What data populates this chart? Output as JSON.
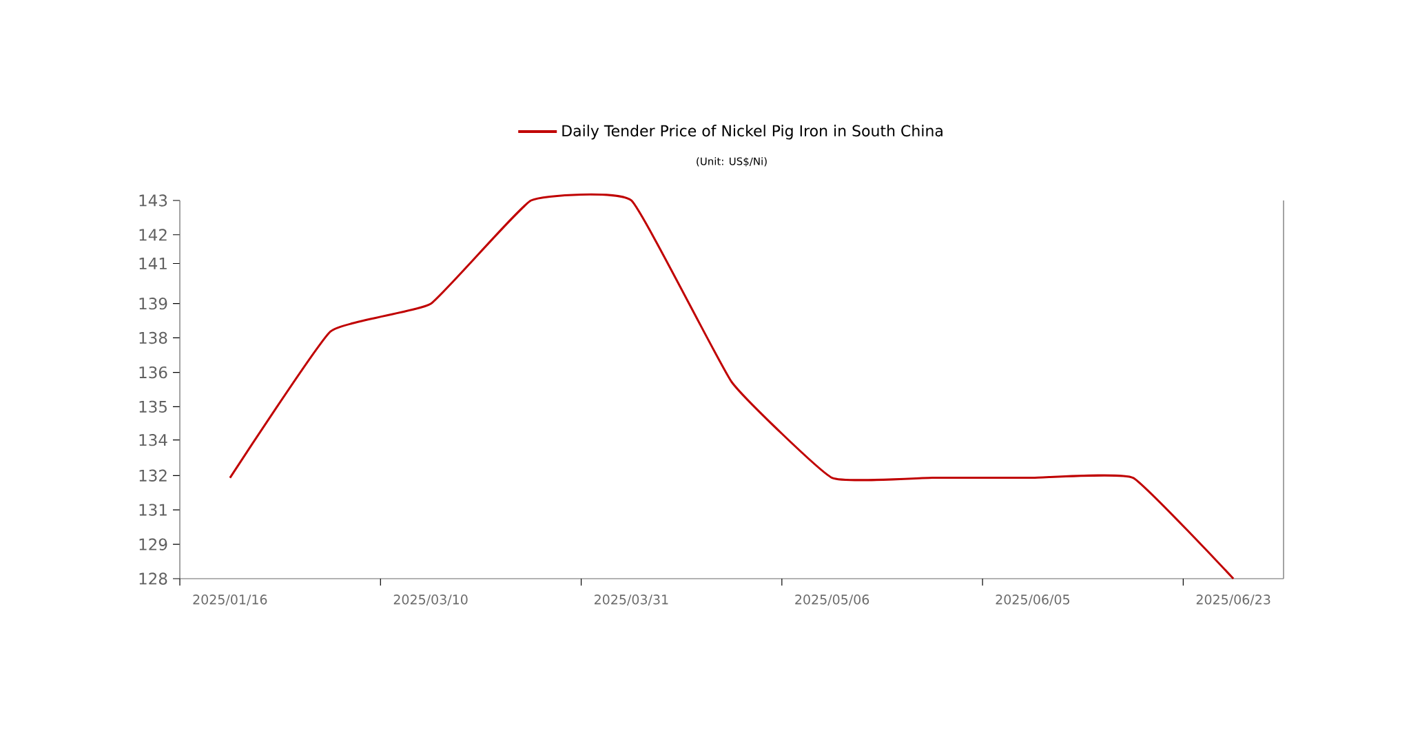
{
  "chart_data": {
    "type": "line",
    "subtitle": "(Unit: US$/Ni)",
    "categories": [
      "2025/01/16",
      null,
      "2025/03/10",
      null,
      "2025/03/31",
      null,
      "2025/05/06",
      null,
      "2025/06/05",
      null,
      "2025/06/23"
    ],
    "series": [
      {
        "name": "Daily Tender Price of Nickel Pig Iron in South China",
        "color": "#c00000",
        "values": [
          132,
          137.8,
          138.9,
          143,
          143,
          135.8,
          132,
          132,
          132,
          132,
          128
        ]
      }
    ],
    "ylim": [
      128,
      143
    ],
    "yticks": [
      {
        "value": 128,
        "label": "128"
      },
      {
        "value": 129.36,
        "label": "129"
      },
      {
        "value": 130.73,
        "label": "131"
      },
      {
        "value": 132.09,
        "label": "132"
      },
      {
        "value": 133.5,
        "label": "134"
      },
      {
        "value": 134.82,
        "label": "135"
      },
      {
        "value": 136.18,
        "label": "136"
      },
      {
        "value": 137.55,
        "label": "138"
      },
      {
        "value": 138.91,
        "label": "139"
      },
      {
        "value": 140.5,
        "label": "141"
      },
      {
        "value": 141.64,
        "label": "142"
      },
      {
        "value": 143,
        "label": "143"
      }
    ],
    "legend": "top",
    "marker": "none",
    "line_style": "solid"
  }
}
